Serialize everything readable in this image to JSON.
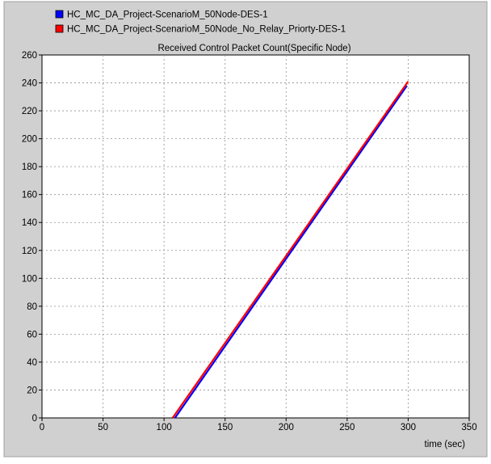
{
  "legend": [
    {
      "label": "HC_MC_DA_Project-ScenarioM_50Node-DES-1",
      "color": "#0000ff"
    },
    {
      "label": "HC_MC_DA_Project-ScenarioM_50Node_No_Relay_Priorty-DES-1",
      "color": "#ff0000"
    }
  ],
  "chart_data": {
    "type": "line",
    "title": "Received Control Packet Count(Specific Node)",
    "xlabel": "time (sec)",
    "ylabel": "",
    "xlim": [
      0,
      350
    ],
    "ylim": [
      0,
      260
    ],
    "x_ticks": [
      0,
      50,
      100,
      150,
      200,
      250,
      300,
      350
    ],
    "y_ticks": [
      0,
      20,
      40,
      60,
      80,
      100,
      120,
      140,
      160,
      180,
      200,
      220,
      240,
      260
    ],
    "grid": true,
    "legend_position": "top-left",
    "series": [
      {
        "name": "HC_MC_DA_Project-ScenarioM_50Node-DES-1",
        "color": "#0000ff",
        "x": [
          109,
          299
        ],
        "y": [
          0,
          238
        ]
      },
      {
        "name": "HC_MC_DA_Project-ScenarioM_50Node_No_Relay_Priorty-DES-1",
        "color": "#ff0000",
        "x": [
          107,
          300
        ],
        "y": [
          0,
          241
        ]
      }
    ]
  }
}
